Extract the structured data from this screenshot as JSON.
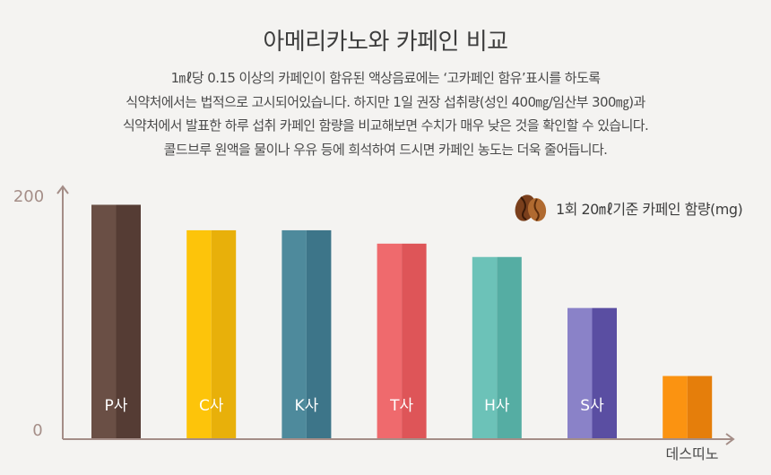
{
  "header": {
    "title": "아메리카노와 카페인 비교",
    "description": [
      "1㎖당 0.15 이상의 카페인이 함유된 액상음료에는 ‘고카페인 함유’표시를 하도록",
      "식약처에서는 법적으로 고시되어있습니다. 하지만 1일 권장 섭취량(성인 400㎎/임산부 300㎎)과",
      "식약처에서 발표한 하루 섭취 카페인 함량을 비교해보면 수치가 매우 낮은 것을 확인할 수 있습니다.",
      "콜드브루 원액을 물이나 우유 등에 희석하여 드시면 카페인 농도는 더욱 줄어듭니다."
    ]
  },
  "legend": {
    "icon": "coffee-beans-icon",
    "label": "1회 20㎖기준 카페인 함량(mg)"
  },
  "chart_data": {
    "type": "bar",
    "categories": [
      "P사",
      "C사",
      "K사",
      "T사",
      "H사",
      "S사",
      "데스띠노"
    ],
    "values": [
      193,
      172,
      172,
      161,
      150,
      108,
      52
    ],
    "ylim": [
      0,
      200
    ],
    "y_ticks": [
      "0",
      "200"
    ],
    "x_axis_end_label": "데스띠노",
    "grid": false,
    "legend_position": "top-right",
    "colors": [
      [
        "#6a4f45",
        "#553c34"
      ],
      [
        "#fdc40a",
        "#e8b00a"
      ],
      [
        "#4e8a9c",
        "#3d7589"
      ],
      [
        "#ef6a6d",
        "#de5558"
      ],
      [
        "#6cc2b8",
        "#55ada3"
      ],
      [
        "#8a82c8",
        "#5a4ea2"
      ],
      [
        "#fb9311",
        "#e57e0b"
      ]
    ],
    "axis_color": "#a48d87",
    "tick_color": "#a58e88"
  }
}
